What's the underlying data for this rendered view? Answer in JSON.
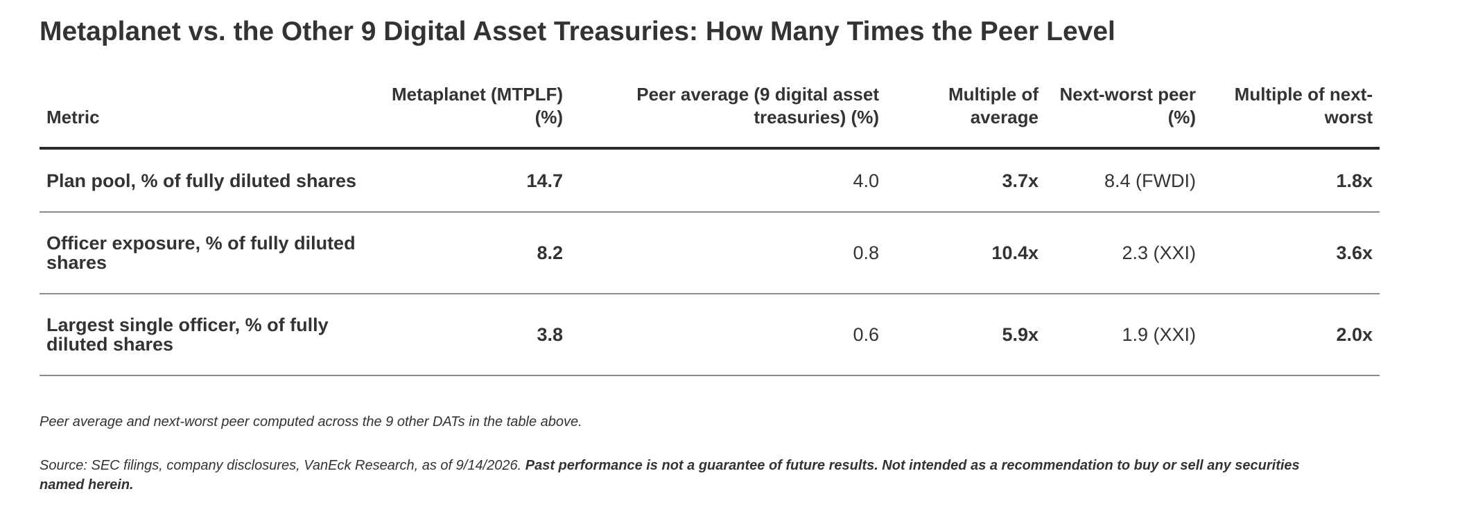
{
  "title": "Metaplanet vs. the Other 9 Digital Asset Treasuries: How Many Times the Peer Level",
  "chart_data": {
    "type": "table",
    "columns": [
      "Metric",
      "Metaplanet (MTPLF) (%)",
      "Peer average (9 digital asset treasuries) (%)",
      "Multiple of average",
      "Next-worst peer (%)",
      "Multiple of next-worst"
    ],
    "rows": [
      [
        "Plan pool, % of fully diluted shares",
        "14.7",
        "4.0",
        "3.7x",
        "8.4 (FWDI)",
        "1.8x"
      ],
      [
        "Officer exposure, % of fully diluted shares",
        "8.2",
        "0.8",
        "10.4x",
        "2.3 (XXI)",
        "3.6x"
      ],
      [
        "Largest single officer, % of fully diluted shares",
        "3.8",
        "0.6",
        "5.9x",
        "1.9 (XXI)",
        "2.0x"
      ]
    ]
  },
  "footnote": "Peer average and next-worst peer computed across the 9 other DATs in the table above.",
  "source": {
    "text": "Source: SEC filings, company disclosures, VanEck Research, as of 9/14/2026. ",
    "disclaimer": "Past performance is not a guarantee of future results. Not intended as a recommendation to buy or sell any securities named herein."
  }
}
